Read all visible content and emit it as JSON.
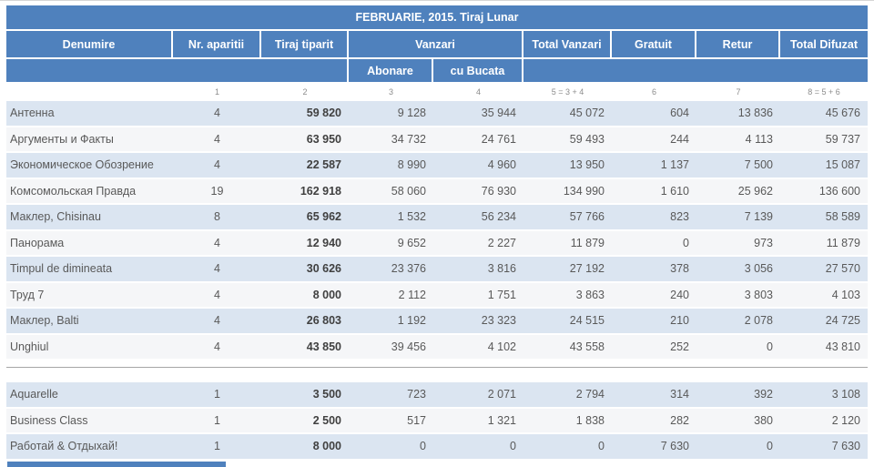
{
  "title": "FEBRUARIE, 2015. Tiraj Lunar",
  "columns": {
    "denumire": "Denumire",
    "nr_aparitii": "Nr. aparitii",
    "tiraj_tiparit": "Tiraj tiparit",
    "vanzari": "Vanzari",
    "total_vanzari": "Total Vanzari",
    "gratuit": "Gratuit",
    "retur": "Retur",
    "total_difuzat": "Total Difuzat"
  },
  "subcolumns": {
    "abonare": "Abonare",
    "cu_bucata": "cu Bucata"
  },
  "index_row": [
    "1",
    "2",
    "3",
    "4",
    "5 = 3 + 4",
    "6",
    "7",
    "8 = 5 + 6"
  ],
  "rows_main": [
    {
      "name": "Антенна",
      "nr": "4",
      "tiraj": "59 820",
      "abonare": "9 128",
      "bucata": "35 944",
      "vanzari": "45 072",
      "gratuit": "604",
      "retur": "13 836",
      "difuzat": "45 676"
    },
    {
      "name": "Аргументы и Факты",
      "nr": "4",
      "tiraj": "63 950",
      "abonare": "34 732",
      "bucata": "24 761",
      "vanzari": "59 493",
      "gratuit": "244",
      "retur": "4 113",
      "difuzat": "59 737"
    },
    {
      "name": "Экономическое Обозрение",
      "nr": "4",
      "tiraj": "22 587",
      "abonare": "8 990",
      "bucata": "4 960",
      "vanzari": "13 950",
      "gratuit": "1 137",
      "retur": "7 500",
      "difuzat": "15 087"
    },
    {
      "name": "Комсомольская Правда",
      "nr": "19",
      "tiraj": "162 918",
      "abonare": "58 060",
      "bucata": "76 930",
      "vanzari": "134 990",
      "gratuit": "1 610",
      "retur": "25 962",
      "difuzat": "136 600"
    },
    {
      "name": "Маклер, Chisinau",
      "nr": "8",
      "tiraj": "65 962",
      "abonare": "1 532",
      "bucata": "56 234",
      "vanzari": "57 766",
      "gratuit": "823",
      "retur": "7 139",
      "difuzat": "58 589"
    },
    {
      "name": "Панорама",
      "nr": "4",
      "tiraj": "12 940",
      "abonare": "9 652",
      "bucata": "2 227",
      "vanzari": "11 879",
      "gratuit": "0",
      "retur": "973",
      "difuzat": "11 879"
    },
    {
      "name": "Timpul de dimineata",
      "nr": "4",
      "tiraj": "30 626",
      "abonare": "23 376",
      "bucata": "3 816",
      "vanzari": "27 192",
      "gratuit": "378",
      "retur": "3 056",
      "difuzat": "27 570"
    },
    {
      "name": "Труд 7",
      "nr": "4",
      "tiraj": "8 000",
      "abonare": "2 112",
      "bucata": "1 751",
      "vanzari": "3 863",
      "gratuit": "240",
      "retur": "3 803",
      "difuzat": "4 103"
    },
    {
      "name": "Маклер, Balti",
      "nr": "4",
      "tiraj": "26 803",
      "abonare": "1 192",
      "bucata": "23 323",
      "vanzari": "24 515",
      "gratuit": "210",
      "retur": "2 078",
      "difuzat": "24 725"
    },
    {
      "name": "Unghiul",
      "nr": "4",
      "tiraj": "43 850",
      "abonare": "39 456",
      "bucata": "4 102",
      "vanzari": "43 558",
      "gratuit": "252",
      "retur": "0",
      "difuzat": "43 810"
    }
  ],
  "rows_magazines": [
    {
      "name": "Aquarelle",
      "nr": "1",
      "tiraj": "3 500",
      "abonare": "723",
      "bucata": "2 071",
      "vanzari": "2 794",
      "gratuit": "314",
      "retur": "392",
      "difuzat": "3 108"
    },
    {
      "name": "Business Class",
      "nr": "1",
      "tiraj": "2 500",
      "abonare": "517",
      "bucata": "1 321",
      "vanzari": "1 838",
      "gratuit": "282",
      "retur": "380",
      "difuzat": "2 120"
    },
    {
      "name": "Работай & Отдыхай!",
      "nr": "1",
      "tiraj": "8 000",
      "abonare": "0",
      "bucata": "0",
      "vanzari": "0",
      "gratuit": "7 630",
      "retur": "0",
      "difuzat": "7 630"
    }
  ],
  "colors": {
    "header_blue": "#4f81bd",
    "row_highlight": "#dbe5f1",
    "row_plain": "#f5f6f8",
    "data_text": "#595959",
    "index_text": "#8c8c8c",
    "divider": "#a6a6a6"
  }
}
